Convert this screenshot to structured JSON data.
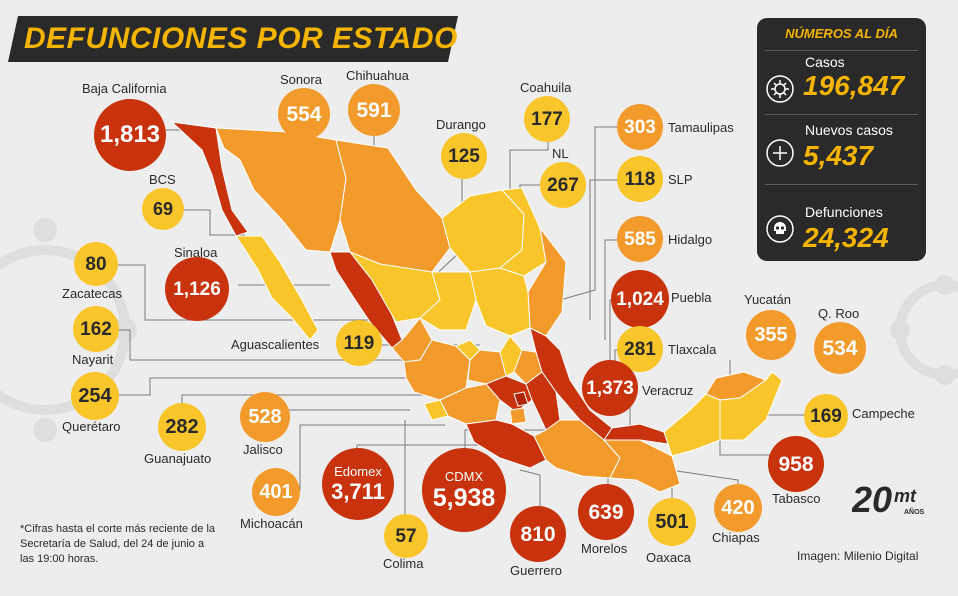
{
  "title": "DEFUNCIONES POR ESTADO",
  "stats": {
    "header": "NÚMEROS AL DÍA",
    "items": [
      {
        "label": "Casos",
        "value": "196,847",
        "icon": "virus-icon"
      },
      {
        "label": "Nuevos casos",
        "value": "5,437",
        "icon": "plus-icon"
      },
      {
        "label": "Defunciones",
        "value": "24,324",
        "icon": "skull-icon"
      }
    ]
  },
  "states": [
    {
      "name": "Baja California",
      "value": "1,813"
    },
    {
      "name": "Sonora",
      "value": "554"
    },
    {
      "name": "Chihuahua",
      "value": "591"
    },
    {
      "name": "Durango",
      "value": "125"
    },
    {
      "name": "Coahuila",
      "value": "177"
    },
    {
      "name": "Tamaulipas",
      "value": "303"
    },
    {
      "name": "NL",
      "value": "267"
    },
    {
      "name": "SLP",
      "value": "118"
    },
    {
      "name": "BCS",
      "value": "69"
    },
    {
      "name": "Hidalgo",
      "value": "585"
    },
    {
      "name": "Zacatecas",
      "value": "80"
    },
    {
      "name": "Sinaloa",
      "value": "1,126"
    },
    {
      "name": "Puebla",
      "value": "1,024"
    },
    {
      "name": "Nayarit",
      "value": "162"
    },
    {
      "name": "Aguascalientes",
      "value": "119"
    },
    {
      "name": "Tlaxcala",
      "value": "281"
    },
    {
      "name": "Yucatán",
      "value": "355"
    },
    {
      "name": "Q. Roo",
      "value": "534"
    },
    {
      "name": "Querétaro",
      "value": "254"
    },
    {
      "name": "Veracruz",
      "value": "1,373"
    },
    {
      "name": "Campeche",
      "value": "169"
    },
    {
      "name": "Guanajuato",
      "value": "282"
    },
    {
      "name": "Jalisco",
      "value": "528"
    },
    {
      "name": "Edomex",
      "value": "3,711"
    },
    {
      "name": "CDMX",
      "value": "5,938"
    },
    {
      "name": "Tabasco",
      "value": "958"
    },
    {
      "name": "Michoacán",
      "value": "401"
    },
    {
      "name": "Morelos",
      "value": "639"
    },
    {
      "name": "Oaxaca",
      "value": "501"
    },
    {
      "name": "Chiapas",
      "value": "420"
    },
    {
      "name": "Colima",
      "value": "57"
    },
    {
      "name": "Guerrero",
      "value": "810"
    }
  ],
  "note": "*Cifras hasta el corte más reciente de la Secretaría de Salud, del 24 de junio a las 19:00 horas.",
  "credit": "Imagen: Milenio Digital",
  "logo": {
    "number": "20",
    "brand": "mt",
    "sub": "AÑOS"
  },
  "colors": {
    "dark_red": "#b02306",
    "red": "#c8320c",
    "orange": "#f39a2c",
    "yellow": "#f8c62a",
    "accent": "#f5b400",
    "box": "#2a2a2a"
  }
}
